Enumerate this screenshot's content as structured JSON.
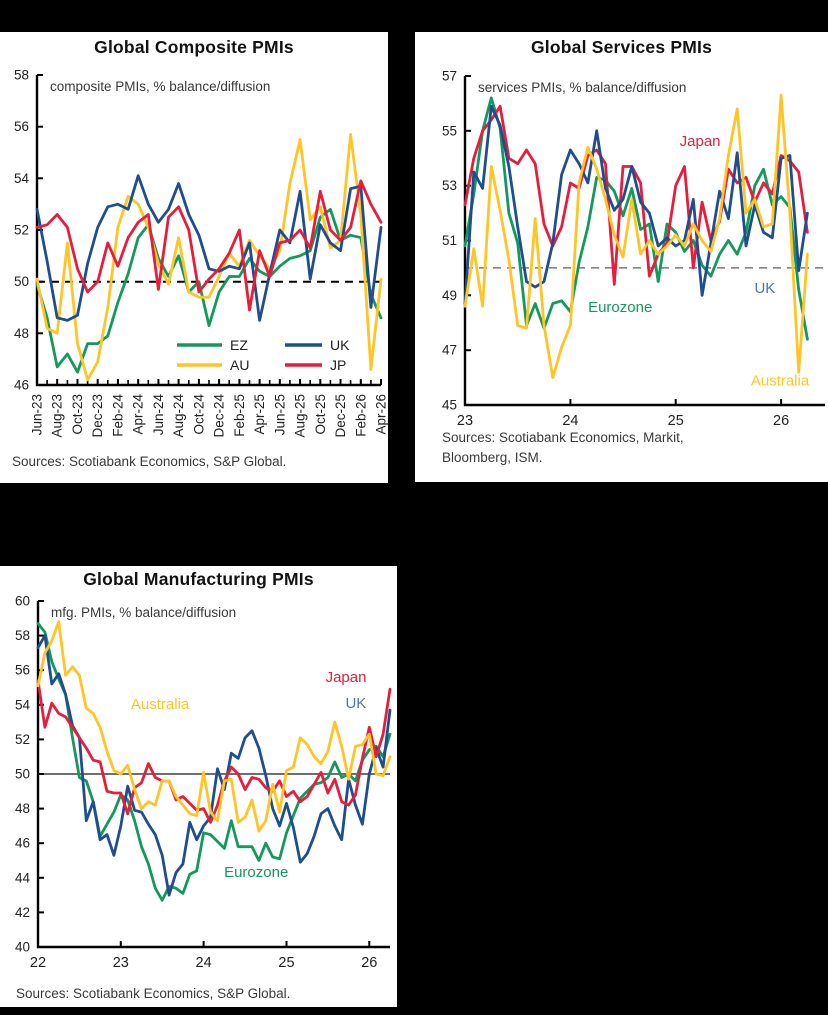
{
  "page": {
    "background": "#000000",
    "panel_background": "#ffffff"
  },
  "colors": {
    "eurozone_green": "#12995B",
    "australia_yellow": "#FFC425",
    "uk_navy": "#1F4E8F",
    "japan_red": "#E81C3B",
    "uk_label_blue": "#4D74AD",
    "axis_black": "#000000",
    "ref_gray": "#7A7A7A"
  },
  "chart_data": [
    {
      "type": "line",
      "name": "global-composite-pmis",
      "title": "Global Composite PMIs",
      "subtitle": "composite PMIs, % balance/diffusion",
      "ylim": [
        46,
        58
      ],
      "yticks": [
        46,
        48,
        50,
        52,
        54,
        56,
        58
      ],
      "xlim": [
        0,
        34
      ],
      "xtick_labels": [
        "Jun-23",
        "Aug-23",
        "Oct-23",
        "Dec-23",
        "Feb-24",
        "Apr-24",
        "Jun-24",
        "Aug-24",
        "Oct-24",
        "Dec-24",
        "Feb-25",
        "Apr-25",
        "Jun-25",
        "Aug-25",
        "Oct-25",
        "Dec-25",
        "Feb-26",
        "Apr-26"
      ],
      "xtick_positions": [
        0,
        2,
        4,
        6,
        8,
        10,
        12,
        14,
        16,
        18,
        20,
        22,
        24,
        26,
        28,
        30,
        32,
        34
      ],
      "monthly_minor_ticks": true,
      "grid": false,
      "reference_line": {
        "y": 50,
        "style": "dashed",
        "color": "#000000",
        "width": 2
      },
      "legend": {
        "position": "inside-bottom-right",
        "entries": [
          "EZ",
          "AU",
          "UK",
          "JP"
        ]
      },
      "series": [
        {
          "name": "EZ",
          "color": "#12995B",
          "values": [
            49.9,
            48.6,
            46.7,
            47.2,
            46.5,
            47.6,
            47.6,
            47.9,
            49.2,
            50.3,
            51.7,
            52.2,
            50.9,
            50.2,
            51.0,
            49.6,
            50.0,
            48.3,
            49.6,
            50.2,
            50.2,
            50.9,
            50.4,
            50.2,
            50.6,
            50.9,
            51.0,
            51.2,
            52.5,
            52.8,
            51.6,
            51.8,
            51.7,
            49.5,
            48.6
          ]
        },
        {
          "name": "AU",
          "color": "#FFC425",
          "values": [
            50.1,
            48.2,
            48.0,
            51.5,
            47.6,
            46.2,
            46.9,
            49.0,
            52.1,
            53.3,
            53.0,
            52.1,
            50.7,
            49.9,
            51.7,
            49.6,
            49.4,
            49.4,
            50.2,
            51.1,
            50.6,
            51.6,
            51.0,
            50.5,
            51.2,
            53.8,
            55.5,
            52.4,
            52.9,
            51.3,
            51.6,
            55.7,
            52.6,
            46.6,
            50.1
          ]
        },
        {
          "name": "UK",
          "color": "#1F4E8F",
          "values": [
            52.8,
            50.8,
            48.6,
            48.5,
            48.7,
            50.7,
            52.1,
            52.9,
            53.0,
            52.8,
            54.1,
            53.0,
            52.3,
            52.8,
            53.8,
            52.6,
            51.8,
            50.5,
            50.4,
            50.6,
            50.5,
            51.5,
            48.5,
            50.3,
            52.0,
            51.5,
            53.5,
            50.1,
            52.2,
            51.5,
            51.2,
            53.6,
            53.7,
            49.0,
            52.1
          ]
        },
        {
          "name": "JP",
          "color": "#E81C3B",
          "values": [
            52.1,
            52.2,
            52.6,
            52.1,
            50.5,
            49.6,
            50.0,
            51.5,
            50.6,
            51.7,
            52.3,
            52.6,
            49.7,
            52.5,
            52.9,
            52.0,
            49.6,
            50.1,
            50.5,
            51.1,
            52.0,
            48.9,
            51.2,
            50.2,
            51.5,
            51.6,
            52.0,
            51.3,
            53.5,
            52.0,
            51.6,
            52.1,
            53.9,
            53.0,
            52.3
          ]
        }
      ],
      "annotations": [],
      "source_lines": [
        "Sources: Scotiabank Economics, S&P Global."
      ]
    },
    {
      "type": "line",
      "name": "global-services-pmis",
      "title": "Global Services PMIs",
      "subtitle": "services PMIs, % balance/diffusion",
      "ylim": [
        45,
        57
      ],
      "yticks": [
        45,
        47,
        49,
        51,
        53,
        55,
        57
      ],
      "xlim": [
        0,
        41
      ],
      "xtick_labels": [
        "23",
        "24",
        "25",
        "26"
      ],
      "xtick_positions": [
        0,
        12,
        24,
        36
      ],
      "monthly_minor_ticks": false,
      "grid": false,
      "reference_line": {
        "y": 50,
        "style": "dashed",
        "color": "#7A7A7A",
        "width": 1.5
      },
      "legend": null,
      "series": [
        {
          "name": "Eurozone",
          "color": "#12995B",
          "values": [
            50.8,
            52.7,
            55.0,
            56.2,
            55.1,
            52.0,
            50.9,
            47.9,
            48.7,
            47.8,
            48.7,
            48.8,
            48.4,
            50.2,
            51.5,
            53.3,
            53.2,
            52.8,
            51.9,
            52.9,
            51.4,
            51.6,
            49.5,
            51.6,
            51.3,
            50.6,
            51.0,
            50.1,
            49.7,
            50.5,
            51.0,
            50.5,
            51.3,
            53.0,
            53.6,
            52.3,
            52.6,
            52.2,
            49.2,
            47.4
          ]
        },
        {
          "name": "Japan",
          "color": "#E81C3B",
          "values": [
            52.3,
            54.0,
            55.0,
            55.4,
            55.9,
            54.0,
            53.8,
            54.3,
            53.8,
            51.6,
            50.8,
            51.5,
            53.1,
            52.9,
            54.1,
            54.3,
            53.8,
            49.4,
            53.7,
            53.7,
            53.1,
            49.7,
            50.5,
            50.9,
            53.0,
            53.7,
            50.0,
            52.4,
            51.0,
            51.7,
            53.6,
            53.1,
            53.3,
            52.4,
            53.1,
            52.7,
            54.1,
            53.9,
            53.5,
            51.3
          ]
        },
        {
          "name": "UK",
          "color": "#1F4E8F",
          "values": [
            48.7,
            53.5,
            52.9,
            55.9,
            55.2,
            53.7,
            51.5,
            49.5,
            49.3,
            49.5,
            50.9,
            53.4,
            54.3,
            53.8,
            53.1,
            55.0,
            52.9,
            52.1,
            52.5,
            53.7,
            52.4,
            52.0,
            50.8,
            51.1,
            50.8,
            51.0,
            52.5,
            49.0,
            50.9,
            52.8,
            51.8,
            54.2,
            50.8,
            52.3,
            51.3,
            51.1,
            54.0,
            54.1,
            49.9,
            52.0
          ]
        },
        {
          "name": "Australia",
          "color": "#FFC425",
          "values": [
            48.6,
            50.7,
            48.6,
            53.7,
            52.1,
            50.3,
            47.9,
            47.8,
            51.8,
            47.9,
            46.0,
            47.1,
            47.9,
            53.1,
            54.4,
            53.6,
            52.5,
            51.2,
            50.4,
            52.5,
            50.5,
            51.0,
            50.5,
            50.8,
            51.2,
            50.8,
            51.6,
            51.0,
            50.6,
            51.8,
            54.1,
            55.8,
            52.0,
            52.5,
            51.5,
            51.6,
            56.3,
            52.0,
            46.2,
            50.5
          ]
        }
      ],
      "annotations": [
        {
          "text": "Japan",
          "color": "#E81C3B",
          "fx": 0.653,
          "fy": 0.213
        },
        {
          "text": "Eurozone",
          "color": "#12995B",
          "fx": 0.431,
          "fy": 0.717
        },
        {
          "text": "UK",
          "color": "#4D74AD",
          "fx": 0.833,
          "fy": 0.66
        },
        {
          "text": "Australia",
          "color": "#FFC425",
          "fx": 0.875,
          "fy": 0.94
        }
      ],
      "source_lines": [
        "Sources: Scotiabank Economics, Markit,",
        "Bloomberg, ISM."
      ]
    },
    {
      "type": "line",
      "name": "global-manufacturing-pmis",
      "title": "Global Manufacturing PMIs",
      "subtitle": "mfg. PMIs, % balance/diffusion",
      "ylim": [
        40,
        60
      ],
      "yticks": [
        40,
        42,
        44,
        46,
        48,
        50,
        52,
        54,
        56,
        58,
        60
      ],
      "xlim": [
        0,
        51
      ],
      "xtick_labels": [
        "22",
        "23",
        "24",
        "25",
        "26"
      ],
      "xtick_positions": [
        0,
        12,
        24,
        36,
        48
      ],
      "monthly_minor_ticks": false,
      "grid": false,
      "reference_line": {
        "y": 50,
        "style": "solid",
        "color": "#6E6E6E",
        "width": 2
      },
      "legend": null,
      "series": [
        {
          "name": "Eurozone",
          "color": "#12995B",
          "values": [
            58.7,
            58.2,
            56.5,
            55.5,
            54.6,
            52.1,
            49.8,
            49.6,
            48.4,
            46.4,
            47.1,
            47.8,
            48.8,
            48.5,
            47.3,
            45.8,
            44.8,
            43.4,
            42.7,
            43.5,
            43.4,
            43.1,
            44.2,
            44.4,
            46.6,
            46.5,
            46.1,
            45.7,
            47.3,
            45.8,
            45.8,
            45.8,
            45.0,
            46.0,
            45.2,
            45.1,
            46.6,
            47.6,
            48.6,
            49.0,
            49.4,
            49.5,
            49.8,
            50.7,
            49.8,
            50.0,
            49.6,
            50.8,
            51.4,
            51.6,
            51.0,
            52.3
          ]
        },
        {
          "name": "UK",
          "color": "#1F4E8F",
          "values": [
            57.3,
            58.0,
            55.2,
            55.8,
            54.6,
            52.8,
            52.1,
            47.3,
            48.4,
            46.2,
            46.5,
            45.3,
            47.0,
            49.3,
            47.9,
            47.8,
            47.1,
            46.5,
            45.3,
            43.0,
            44.3,
            44.8,
            47.2,
            46.2,
            47.0,
            47.5,
            50.3,
            49.1,
            51.2,
            50.9,
            52.1,
            52.5,
            51.5,
            49.9,
            48.0,
            47.0,
            48.3,
            46.9,
            44.9,
            45.4,
            46.4,
            47.7,
            48.0,
            47.0,
            46.2,
            49.7,
            48.2,
            47.1,
            50.0,
            51.5,
            50.4,
            53.7
          ]
        },
        {
          "name": "Japan",
          "color": "#E81C3B",
          "values": [
            55.4,
            52.7,
            54.1,
            53.5,
            53.3,
            52.7,
            52.1,
            51.5,
            50.8,
            50.7,
            49.0,
            48.9,
            48.9,
            47.7,
            49.2,
            49.5,
            50.6,
            49.8,
            49.6,
            49.6,
            48.5,
            48.7,
            48.3,
            47.9,
            48.0,
            47.2,
            48.2,
            49.6,
            50.4,
            50.0,
            49.1,
            49.8,
            49.7,
            49.2,
            49.0,
            49.6,
            48.7,
            49.0,
            48.4,
            48.7,
            49.4,
            50.1,
            48.9,
            49.7,
            48.4,
            48.2,
            48.8,
            50.9,
            52.7,
            51.0,
            52.3,
            54.9
          ]
        },
        {
          "name": "Australia",
          "color": "#FFC425",
          "values": [
            55.1,
            57.0,
            57.7,
            58.8,
            55.7,
            56.2,
            55.7,
            53.8,
            53.5,
            52.7,
            51.3,
            50.2,
            50.0,
            50.5,
            49.1,
            48.0,
            48.4,
            48.2,
            49.6,
            49.6,
            48.7,
            48.2,
            47.7,
            47.6,
            50.1,
            47.8,
            47.3,
            49.6,
            49.7,
            47.2,
            47.5,
            48.5,
            46.7,
            47.3,
            49.4,
            47.8,
            50.2,
            50.4,
            52.1,
            51.7,
            51.0,
            50.6,
            51.3,
            53.0,
            51.6,
            49.7,
            51.6,
            51.7,
            52.3,
            50.0,
            49.9,
            51.0
          ]
        }
      ],
      "annotations": [
        {
          "text": "Australia",
          "color": "#FFC425",
          "fx": 0.347,
          "fy": 0.312
        },
        {
          "text": "Japan",
          "color": "#E81C3B",
          "fx": 0.875,
          "fy": 0.234
        },
        {
          "text": "UK",
          "color": "#4D74AD",
          "fx": 0.903,
          "fy": 0.309
        },
        {
          "text": "Eurozone",
          "color": "#12995B",
          "fx": 0.62,
          "fy": 0.798
        }
      ],
      "source_lines": [
        "Sources: Scotiabank Economics, S&P Global."
      ]
    }
  ]
}
